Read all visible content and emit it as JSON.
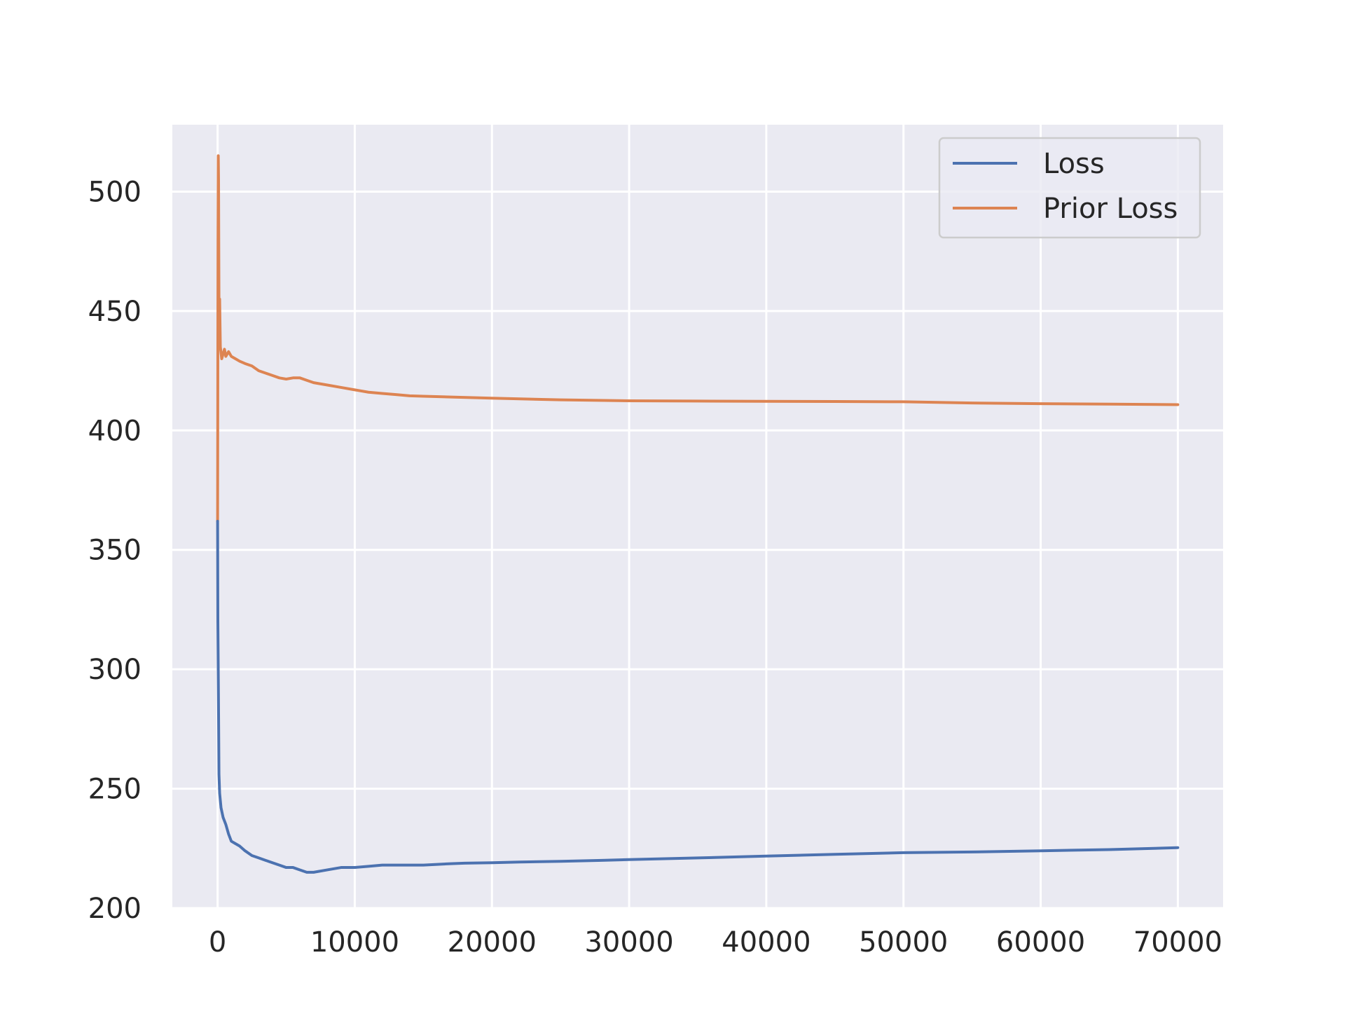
{
  "chart_data": {
    "type": "line",
    "title": "",
    "xlabel": "",
    "ylabel": "",
    "xlim": [
      -3300,
      73300
    ],
    "ylim": [
      200,
      528
    ],
    "xticks": [
      0,
      10000,
      20000,
      30000,
      40000,
      50000,
      60000,
      70000
    ],
    "yticks": [
      200,
      250,
      300,
      350,
      400,
      450,
      500
    ],
    "grid": true,
    "legend_position": "top-right",
    "background": "#eaeaf2",
    "series": [
      {
        "name": "Loss",
        "color": "#4c72b0",
        "points": [
          [
            0,
            362
          ],
          [
            20,
            320
          ],
          [
            60,
            290
          ],
          [
            100,
            256
          ],
          [
            150,
            248
          ],
          [
            250,
            242
          ],
          [
            400,
            238
          ],
          [
            600,
            235
          ],
          [
            800,
            231
          ],
          [
            1000,
            228
          ],
          [
            1300,
            227
          ],
          [
            1600,
            226
          ],
          [
            2000,
            224
          ],
          [
            2500,
            222
          ],
          [
            3000,
            221
          ],
          [
            3500,
            220
          ],
          [
            4000,
            219
          ],
          [
            4500,
            218
          ],
          [
            5000,
            217
          ],
          [
            5500,
            217
          ],
          [
            6000,
            216
          ],
          [
            6500,
            215
          ],
          [
            7000,
            215
          ],
          [
            8000,
            216
          ],
          [
            9000,
            217
          ],
          [
            10000,
            217
          ],
          [
            11000,
            217.5
          ],
          [
            12000,
            218
          ],
          [
            13000,
            218
          ],
          [
            14000,
            218
          ],
          [
            15000,
            218
          ],
          [
            16000,
            218.3
          ],
          [
            17000,
            218.6
          ],
          [
            18000,
            218.8
          ],
          [
            20000,
            219
          ],
          [
            22000,
            219.3
          ],
          [
            25000,
            219.6
          ],
          [
            28000,
            220
          ],
          [
            30000,
            220.3
          ],
          [
            35000,
            221
          ],
          [
            40000,
            221.8
          ],
          [
            45000,
            222.5
          ],
          [
            50000,
            223.2
          ],
          [
            55000,
            223.5
          ],
          [
            60000,
            224
          ],
          [
            65000,
            224.5
          ],
          [
            70000,
            225.3
          ]
        ]
      },
      {
        "name": "Prior Loss",
        "color": "#dd8452",
        "points": [
          [
            0,
            362
          ],
          [
            15,
            420
          ],
          [
            30,
            480
          ],
          [
            50,
            515
          ],
          [
            70,
            505
          ],
          [
            90,
            470
          ],
          [
            110,
            440
          ],
          [
            150,
            455
          ],
          [
            200,
            435
          ],
          [
            300,
            430
          ],
          [
            400,
            432
          ],
          [
            500,
            434
          ],
          [
            600,
            431
          ],
          [
            800,
            433
          ],
          [
            1000,
            431
          ],
          [
            1300,
            430
          ],
          [
            1600,
            429
          ],
          [
            2000,
            428
          ],
          [
            2500,
            427
          ],
          [
            3000,
            425
          ],
          [
            3500,
            424
          ],
          [
            4000,
            423
          ],
          [
            4500,
            422
          ],
          [
            5000,
            421.5
          ],
          [
            5500,
            422
          ],
          [
            6000,
            422
          ],
          [
            6500,
            421
          ],
          [
            7000,
            420
          ],
          [
            8000,
            419
          ],
          [
            9000,
            418
          ],
          [
            10000,
            417
          ],
          [
            11000,
            416
          ],
          [
            12000,
            415.5
          ],
          [
            13000,
            415
          ],
          [
            14000,
            414.5
          ],
          [
            15000,
            414.3
          ],
          [
            17000,
            414
          ],
          [
            20000,
            413.5
          ],
          [
            25000,
            412.8
          ],
          [
            30000,
            412.4
          ],
          [
            35000,
            412.3
          ],
          [
            40000,
            412.2
          ],
          [
            45000,
            412.1
          ],
          [
            50000,
            412
          ],
          [
            55000,
            411.5
          ],
          [
            60000,
            411.2
          ],
          [
            65000,
            411
          ],
          [
            70000,
            410.8
          ]
        ]
      }
    ]
  }
}
